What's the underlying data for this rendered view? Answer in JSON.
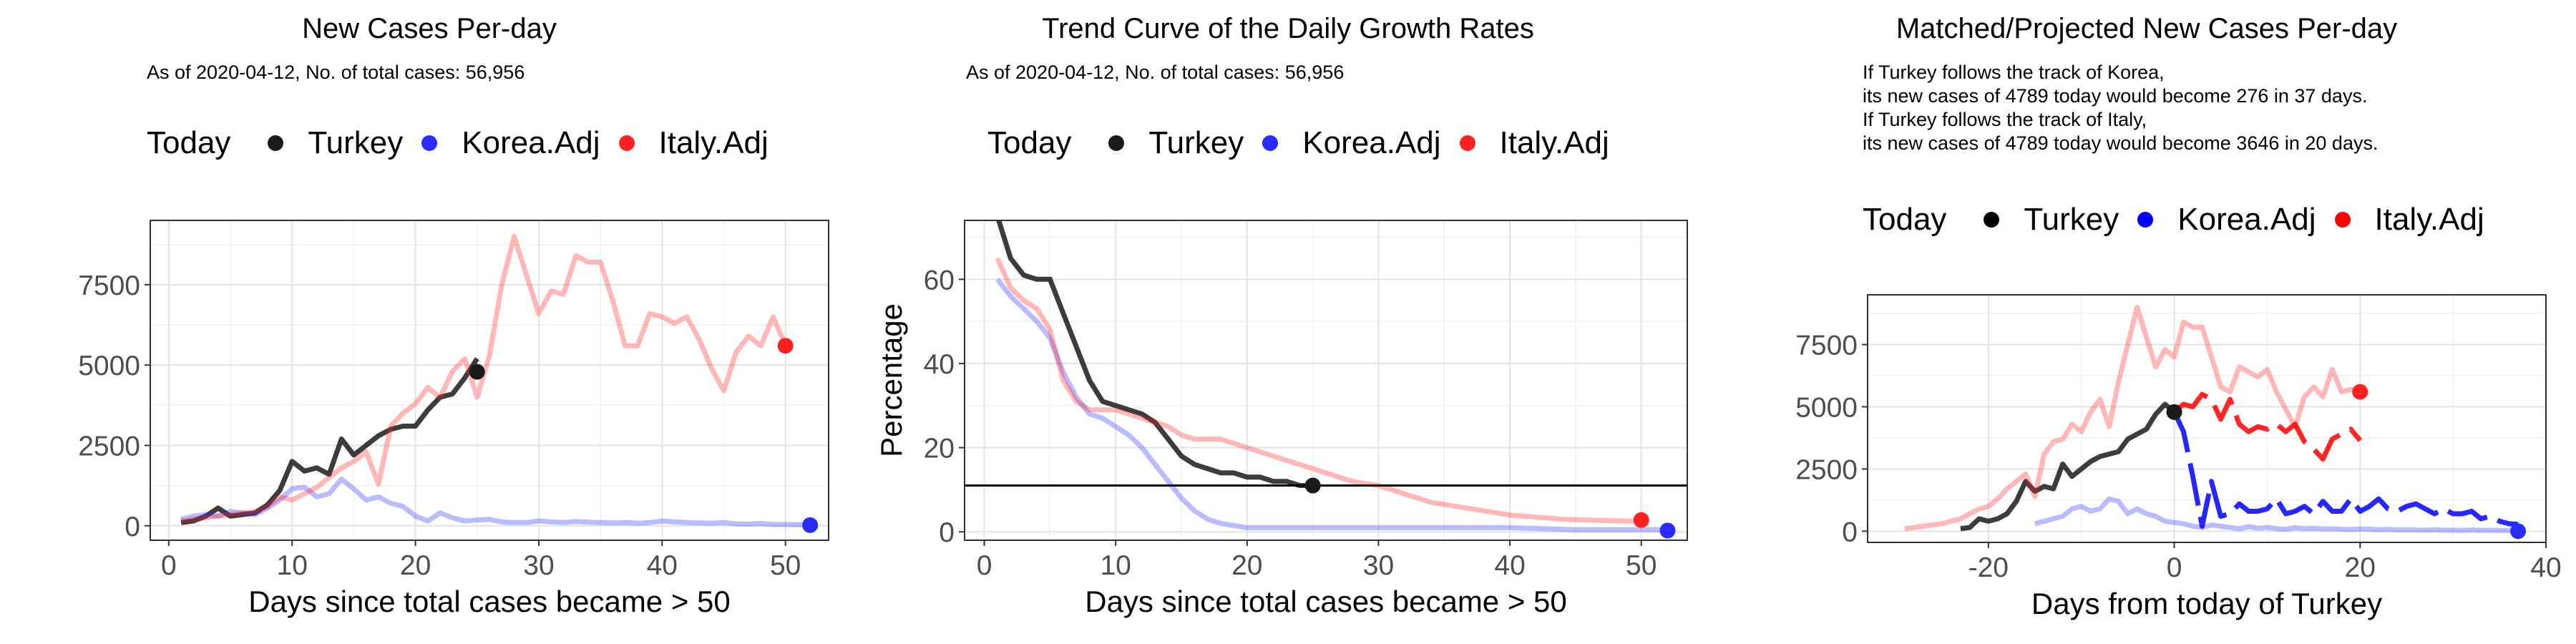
{
  "colors": {
    "turkey": "#1a1a1a",
    "korea": "#2b2bff",
    "italy": "#ff2020"
  },
  "panels": [
    {
      "title": "New Cases Per-day",
      "subtitle": [
        "As of 2020-04-12, No. of total cases: 56,956"
      ],
      "legend": {
        "title": "Today",
        "items": [
          "Turkey",
          "Korea.Adj",
          "Italy.Adj"
        ]
      }
    },
    {
      "title": "Trend Curve of the Daily Growth Rates",
      "subtitle": [
        "As of 2020-04-12, No. of total cases: 56,956"
      ],
      "legend": {
        "title": "Today",
        "items": [
          "Turkey",
          "Korea.Adj",
          "Italy.Adj"
        ]
      }
    },
    {
      "title": "Matched/Projected New Cases Per-day",
      "subtitle": [
        "If Turkey follows the track of Korea,",
        "its new cases of 4789 today would become 276 in 37 days.",
        "If Turkey follows the track of Italy,",
        "its new cases of 4789 today would become 3646 in 20 days."
      ],
      "legend": {
        "title": "Today",
        "items": [
          "Turkey",
          "Korea.Adj",
          "Italy.Adj"
        ]
      }
    }
  ],
  "chart_data": [
    {
      "type": "line",
      "title": "New Cases Per-day",
      "xlabel": "Days since total cases became > 50",
      "ylabel": "",
      "xlim": [
        -1.5,
        53.5
      ],
      "ylim": [
        -450,
        9500
      ],
      "xticks": [
        0,
        10,
        20,
        30,
        40,
        50
      ],
      "yticks": [
        0,
        2500,
        5000,
        7500
      ],
      "ytick_labels": [
        "0",
        "2500",
        "5000",
        "7500"
      ],
      "grid": true,
      "series": [
        {
          "name": "Turkey",
          "x": [
            1,
            2,
            3,
            4,
            5,
            6,
            7,
            8,
            9,
            10,
            11,
            12,
            13,
            14,
            15,
            16,
            17,
            18,
            19,
            20,
            21,
            22,
            23,
            24,
            25
          ],
          "y": [
            100,
            150,
            300,
            550,
            300,
            350,
            400,
            650,
            1100,
            2000,
            1700,
            1800,
            1600,
            2700,
            2200,
            2500,
            2800,
            3000,
            3100,
            3100,
            3600,
            4000,
            4100,
            4600,
            5200
          ]
        },
        {
          "name": "Korea.Adj",
          "x": [
            1,
            2,
            3,
            4,
            5,
            6,
            7,
            8,
            9,
            10,
            11,
            12,
            13,
            14,
            15,
            16,
            17,
            18,
            19,
            20,
            21,
            22,
            23,
            24,
            25,
            26,
            27,
            28,
            29,
            30,
            31,
            32,
            33,
            34,
            35,
            36,
            37,
            38,
            39,
            40,
            41,
            42,
            43,
            44,
            45,
            46,
            47,
            48,
            49,
            50,
            51,
            52
          ],
          "y": [
            200,
            300,
            350,
            300,
            450,
            400,
            350,
            550,
            800,
            1150,
            1200,
            900,
            1000,
            1450,
            1150,
            800,
            900,
            700,
            600,
            300,
            150,
            400,
            250,
            150,
            180,
            200,
            120,
            100,
            100,
            150,
            120,
            100,
            130,
            110,
            100,
            90,
            100,
            80,
            100,
            150,
            120,
            100,
            90,
            80,
            100,
            60,
            50,
            70,
            40,
            40,
            30,
            50
          ]
        },
        {
          "name": "Italy.Adj",
          "x": [
            1,
            2,
            3,
            4,
            5,
            6,
            7,
            8,
            9,
            10,
            11,
            12,
            13,
            14,
            15,
            16,
            17,
            18,
            19,
            20,
            21,
            22,
            23,
            24,
            25,
            26,
            27,
            28,
            29,
            30,
            31,
            32,
            33,
            34,
            35,
            36,
            37,
            38,
            39,
            40,
            41,
            42,
            43,
            44,
            45,
            46,
            47,
            48,
            49,
            50
          ],
          "y": [
            150,
            200,
            250,
            300,
            350,
            400,
            450,
            600,
            900,
            800,
            1000,
            1200,
            1500,
            1800,
            2000,
            2300,
            1300,
            3100,
            3500,
            3800,
            4300,
            4000,
            4800,
            5200,
            4000,
            5300,
            7500,
            9000,
            7800,
            6600,
            7300,
            7200,
            8400,
            8200,
            8200,
            7000,
            5600,
            5600,
            6600,
            6500,
            6300,
            6500,
            5800,
            4900,
            4200,
            5400,
            5900,
            5600,
            6500,
            5600
          ]
        }
      ],
      "today_points": [
        {
          "series": "Turkey",
          "x": 25,
          "y": 4789
        },
        {
          "series": "Korea.Adj",
          "x": 52,
          "y": 20
        },
        {
          "series": "Italy.Adj",
          "x": 50,
          "y": 5600
        }
      ]
    },
    {
      "type": "line",
      "title": "Trend Curve of the Daily Growth Rates",
      "xlabel": "Days since total cases became > 50",
      "ylabel": "Percentage",
      "xlim": [
        -1.5,
        53.5
      ],
      "ylim": [
        -2,
        74
      ],
      "xticks": [
        0,
        10,
        20,
        30,
        40,
        50
      ],
      "yticks": [
        0,
        20,
        40,
        60
      ],
      "ytick_labels": [
        "0",
        "20",
        "40",
        "60"
      ],
      "grid": true,
      "hline": 11,
      "series": [
        {
          "name": "Turkey",
          "x": [
            1,
            2,
            3,
            4,
            5,
            6,
            7,
            8,
            9,
            10,
            11,
            12,
            13,
            14,
            15,
            16,
            17,
            18,
            19,
            20,
            21,
            22,
            23,
            24,
            25
          ],
          "y": [
            75,
            65,
            61,
            60,
            60,
            52,
            44,
            36,
            31,
            30,
            29,
            28,
            26,
            22,
            18,
            16,
            15,
            14,
            14,
            13,
            13,
            12,
            12,
            11,
            11
          ]
        },
        {
          "name": "Korea.Adj",
          "x": [
            1,
            2,
            3,
            4,
            5,
            6,
            7,
            8,
            9,
            10,
            11,
            12,
            13,
            14,
            15,
            16,
            17,
            18,
            19,
            20,
            22,
            25,
            30,
            35,
            40,
            45,
            50,
            52
          ],
          "y": [
            60,
            56,
            53,
            50,
            46,
            38,
            32,
            28,
            27,
            25,
            23,
            20,
            16,
            12,
            8,
            5,
            3,
            2,
            1.5,
            1,
            1,
            1,
            1,
            1,
            1,
            0.5,
            0.5,
            0.5
          ]
        },
        {
          "name": "Italy.Adj",
          "x": [
            1,
            2,
            3,
            4,
            5,
            6,
            7,
            8,
            9,
            10,
            11,
            12,
            13,
            14,
            15,
            16,
            17,
            18,
            19,
            20,
            21,
            22,
            23,
            24,
            25,
            26,
            28,
            30,
            32,
            34,
            36,
            38,
            40,
            42,
            44,
            46,
            48,
            50
          ],
          "y": [
            65,
            58,
            55,
            53,
            48,
            36,
            31,
            29,
            29,
            29,
            28,
            27,
            26,
            25,
            23,
            22,
            22,
            22,
            21,
            20,
            19,
            18,
            17,
            16,
            15,
            14,
            12,
            11,
            9,
            7,
            6,
            5,
            4,
            3.5,
            3,
            2.8,
            2.6,
            2.5
          ]
        }
      ],
      "today_points": [
        {
          "series": "Turkey",
          "x": 25,
          "y": 11
        },
        {
          "series": "Korea.Adj",
          "x": 52,
          "y": 0.3
        },
        {
          "series": "Italy.Adj",
          "x": 50,
          "y": 2.8
        }
      ]
    },
    {
      "type": "line",
      "title": "Matched/Projected New Cases Per-day",
      "xlabel": "Days from today of Turkey",
      "ylabel": "",
      "xlim": [
        -33,
        40
      ],
      "ylim": [
        -450,
        9500
      ],
      "xticks": [
        -20,
        0,
        20,
        40
      ],
      "yticks": [
        0,
        2500,
        5000,
        7500
      ],
      "ytick_labels": [
        "0",
        "2500",
        "5000",
        "7500"
      ],
      "grid": true,
      "series": [
        {
          "name": "Turkey",
          "x": [
            -23,
            -22,
            -21,
            -20,
            -19,
            -18,
            -17,
            -16,
            -15,
            -14,
            -13,
            -12,
            -11,
            -10,
            -9,
            -8,
            -7,
            -6,
            -5,
            -4,
            -3,
            -2,
            -1,
            0
          ],
          "y": [
            100,
            150,
            500,
            400,
            500,
            700,
            1200,
            2000,
            1600,
            1800,
            1700,
            2700,
            2200,
            2500,
            2800,
            3000,
            3100,
            3200,
            3700,
            3900,
            4100,
            4700,
            5100,
            4800
          ]
        },
        {
          "name": "Korea.Adj",
          "x": [
            -15,
            -14,
            -13,
            -12,
            -11,
            -10,
            -9,
            -8,
            -7,
            -6,
            -5,
            -4,
            -3,
            -2,
            -1,
            0,
            1,
            2,
            3,
            4,
            5,
            6,
            7,
            8,
            9,
            10,
            11,
            12,
            13,
            14,
            15,
            16,
            17,
            18,
            19,
            20,
            21,
            22,
            23,
            24,
            25,
            26,
            27,
            28,
            29,
            30,
            31,
            32,
            33,
            34,
            35,
            36,
            37
          ],
          "y": [
            300,
            400,
            500,
            600,
            900,
            1000,
            800,
            900,
            1300,
            1200,
            700,
            900,
            700,
            600,
            400,
            350,
            300,
            200,
            150,
            250,
            200,
            150,
            100,
            180,
            120,
            150,
            100,
            80,
            140,
            100,
            120,
            90,
            100,
            80,
            70,
            90,
            80,
            60,
            70,
            50,
            60,
            50,
            40,
            60,
            40,
            40,
            30,
            50,
            30,
            40,
            30,
            30,
            30
          ]
        },
        {
          "name": "Korea.Adj projected",
          "x": [
            0,
            1,
            2,
            3,
            4,
            5,
            6,
            7,
            8,
            9,
            10,
            11,
            12,
            13,
            14,
            15,
            16,
            17,
            18,
            19,
            20,
            21,
            22,
            23,
            24,
            25,
            26,
            27,
            28,
            29,
            30,
            31,
            32,
            33,
            34,
            35,
            36,
            37
          ],
          "y": [
            4800,
            4000,
            2200,
            200,
            2000,
            600,
            700,
            1100,
            800,
            800,
            900,
            1300,
            700,
            800,
            1000,
            700,
            1200,
            800,
            800,
            1300,
            800,
            1000,
            1300,
            900,
            800,
            1000,
            1100,
            900,
            700,
            900,
            700,
            700,
            800,
            500,
            600,
            400,
            300,
            276
          ]
        },
        {
          "name": "Italy.Adj",
          "x": [
            -29,
            -28,
            -27,
            -26,
            -25,
            -24,
            -23,
            -22,
            -21,
            -20,
            -19,
            -18,
            -17,
            -16,
            -15,
            -14,
            -13,
            -12,
            -11,
            -10,
            -9,
            -8,
            -7,
            -6,
            -5,
            -4,
            -3,
            -2,
            -1,
            0,
            1,
            2,
            3,
            4,
            5,
            6,
            7,
            8,
            9,
            10,
            11,
            12,
            13,
            14,
            15,
            16,
            17,
            18,
            19,
            20
          ],
          "y": [
            100,
            150,
            200,
            250,
            300,
            400,
            500,
            700,
            900,
            1000,
            1300,
            1700,
            2000,
            2300,
            1400,
            3100,
            3600,
            3700,
            4300,
            4000,
            4800,
            5300,
            4200,
            6000,
            7500,
            9000,
            7800,
            6600,
            7300,
            7000,
            8400,
            8200,
            8200,
            7000,
            5800,
            5600,
            6600,
            6400,
            6200,
            6500,
            5600,
            4900,
            4200,
            5400,
            5800,
            5400,
            6500,
            5600,
            5700,
            5600
          ]
        },
        {
          "name": "Italy.Adj projected",
          "x": [
            0,
            1,
            2,
            3,
            4,
            5,
            6,
            7,
            8,
            9,
            10,
            11,
            12,
            13,
            14,
            15,
            16,
            17,
            18,
            19,
            20
          ],
          "y": [
            4800,
            5100,
            5000,
            5500,
            5300,
            4500,
            5300,
            4300,
            4000,
            4200,
            4100,
            4300,
            4000,
            4300,
            3600,
            3300,
            2900,
            3700,
            3900,
            4100,
            3646
          ]
        }
      ],
      "today_points": [
        {
          "series": "Turkey",
          "x": 0,
          "y": 4789
        },
        {
          "series": "Korea.Adj",
          "x": 37,
          "y": 0
        },
        {
          "series": "Italy.Adj",
          "x": 20,
          "y": 5600
        }
      ]
    }
  ]
}
